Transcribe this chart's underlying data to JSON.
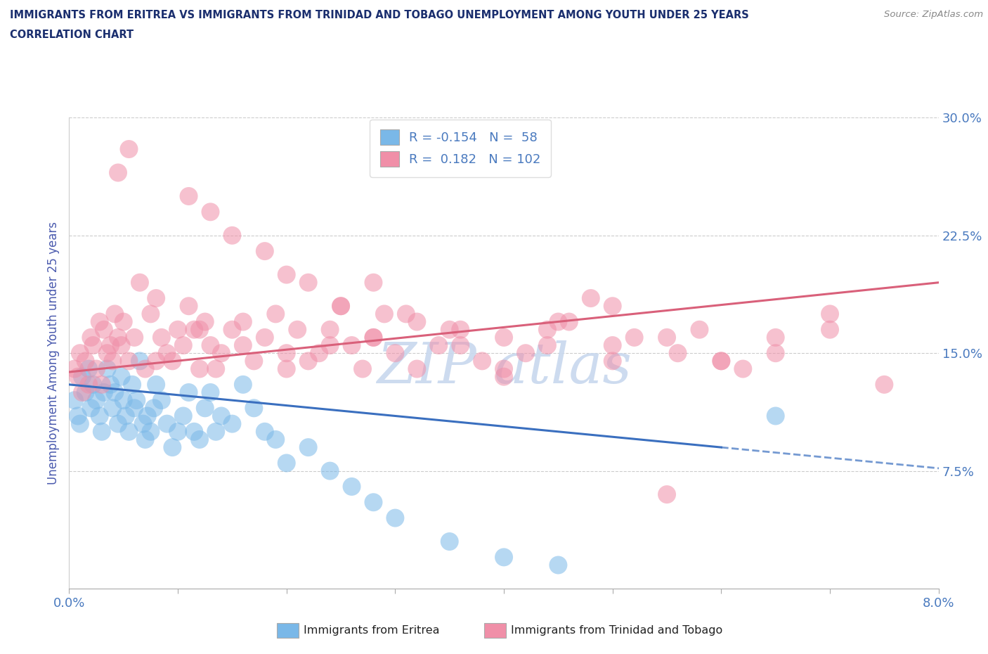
{
  "title_line1": "IMMIGRANTS FROM ERITREA VS IMMIGRANTS FROM TRINIDAD AND TOBAGO UNEMPLOYMENT AMONG YOUTH UNDER 25 YEARS",
  "title_line2": "CORRELATION CHART",
  "source": "Source: ZipAtlas.com",
  "ylabel": "Unemployment Among Youth under 25 years",
  "xlim": [
    0.0,
    8.0
  ],
  "ylim": [
    0.0,
    30.0
  ],
  "yticks": [
    7.5,
    15.0,
    22.5,
    30.0
  ],
  "blue_R": -0.154,
  "blue_N": 58,
  "pink_R": 0.182,
  "pink_N": 102,
  "blue_color": "#7ab8e8",
  "pink_color": "#f08fa8",
  "blue_line_color": "#3a6fbf",
  "pink_line_color": "#d9607a",
  "title_color": "#1a2e6e",
  "axis_label_color": "#4a5aae",
  "tick_color": "#4a7abf",
  "watermark_color": "#c8d8ee",
  "blue_scatter_x": [
    0.05,
    0.08,
    0.1,
    0.12,
    0.15,
    0.18,
    0.2,
    0.22,
    0.25,
    0.28,
    0.3,
    0.32,
    0.35,
    0.38,
    0.4,
    0.42,
    0.45,
    0.48,
    0.5,
    0.52,
    0.55,
    0.58,
    0.6,
    0.62,
    0.65,
    0.68,
    0.7,
    0.72,
    0.75,
    0.78,
    0.8,
    0.85,
    0.9,
    0.95,
    1.0,
    1.05,
    1.1,
    1.15,
    1.2,
    1.25,
    1.3,
    1.35,
    1.4,
    1.5,
    1.6,
    1.7,
    1.8,
    1.9,
    2.0,
    2.2,
    2.4,
    2.6,
    2.8,
    3.0,
    3.5,
    4.0,
    4.5,
    6.5
  ],
  "blue_scatter_y": [
    12.0,
    11.0,
    10.5,
    13.5,
    12.5,
    14.0,
    11.5,
    13.0,
    12.0,
    11.0,
    10.0,
    12.5,
    14.0,
    13.0,
    11.5,
    12.5,
    10.5,
    13.5,
    12.0,
    11.0,
    10.0,
    13.0,
    11.5,
    12.0,
    14.5,
    10.5,
    9.5,
    11.0,
    10.0,
    11.5,
    13.0,
    12.0,
    10.5,
    9.0,
    10.0,
    11.0,
    12.5,
    10.0,
    9.5,
    11.5,
    12.5,
    10.0,
    11.0,
    10.5,
    13.0,
    11.5,
    10.0,
    9.5,
    8.0,
    9.0,
    7.5,
    6.5,
    5.5,
    4.5,
    3.0,
    2.0,
    1.5,
    11.0
  ],
  "pink_scatter_x": [
    0.05,
    0.08,
    0.1,
    0.12,
    0.15,
    0.18,
    0.2,
    0.22,
    0.25,
    0.28,
    0.3,
    0.32,
    0.35,
    0.38,
    0.4,
    0.42,
    0.45,
    0.48,
    0.5,
    0.55,
    0.6,
    0.65,
    0.7,
    0.75,
    0.8,
    0.85,
    0.9,
    0.95,
    1.0,
    1.05,
    1.1,
    1.15,
    1.2,
    1.25,
    1.3,
    1.35,
    1.4,
    1.5,
    1.6,
    1.7,
    1.8,
    1.9,
    2.0,
    2.1,
    2.2,
    2.3,
    2.4,
    2.5,
    2.6,
    2.7,
    2.8,
    2.9,
    3.0,
    3.2,
    3.4,
    3.6,
    3.8,
    4.0,
    4.2,
    4.4,
    4.6,
    5.0,
    5.5,
    6.0,
    6.5,
    7.0,
    1.1,
    0.45,
    0.55,
    1.3,
    1.5,
    1.8,
    2.0,
    2.2,
    2.5,
    2.8,
    3.1,
    3.5,
    4.0,
    4.5,
    5.0,
    0.8,
    1.2,
    1.6,
    2.0,
    2.4,
    2.8,
    3.2,
    3.6,
    4.0,
    4.4,
    5.0,
    5.5,
    6.0,
    6.5,
    7.0,
    4.8,
    5.2,
    5.6,
    6.2,
    7.5,
    5.8
  ],
  "pink_scatter_y": [
    14.0,
    13.5,
    15.0,
    12.5,
    14.5,
    13.0,
    16.0,
    15.5,
    14.0,
    17.0,
    13.0,
    16.5,
    15.0,
    15.5,
    14.5,
    17.5,
    16.0,
    15.5,
    17.0,
    14.5,
    16.0,
    19.5,
    14.0,
    17.5,
    18.5,
    16.0,
    15.0,
    14.5,
    16.5,
    15.5,
    18.0,
    16.5,
    14.0,
    17.0,
    15.5,
    14.0,
    15.0,
    16.5,
    17.0,
    14.5,
    16.0,
    17.5,
    15.0,
    16.5,
    14.5,
    15.0,
    16.5,
    18.0,
    15.5,
    14.0,
    16.0,
    17.5,
    15.0,
    14.0,
    15.5,
    16.5,
    14.5,
    13.5,
    15.0,
    16.5,
    17.0,
    15.5,
    16.0,
    14.5,
    15.0,
    16.5,
    25.0,
    26.5,
    28.0,
    24.0,
    22.5,
    21.5,
    20.0,
    19.5,
    18.0,
    19.5,
    17.5,
    16.5,
    16.0,
    17.0,
    18.0,
    14.5,
    16.5,
    15.5,
    14.0,
    15.5,
    16.0,
    17.0,
    15.5,
    14.0,
    15.5,
    14.5,
    6.0,
    14.5,
    16.0,
    17.5,
    18.5,
    16.0,
    15.0,
    14.0,
    13.0,
    16.5
  ]
}
